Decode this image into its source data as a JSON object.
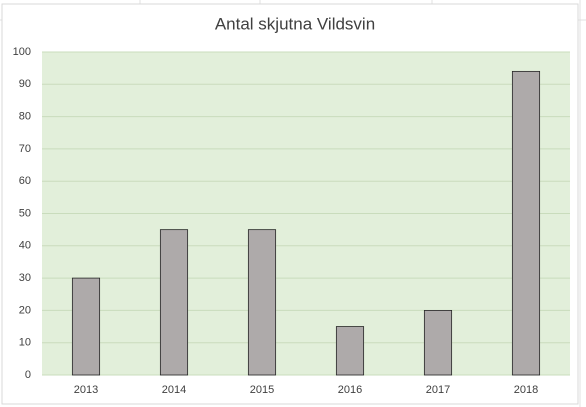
{
  "chart_data": {
    "type": "bar",
    "title": "Antal skjutna Vildsvin",
    "categories": [
      "2013",
      "2014",
      "2015",
      "2016",
      "2017",
      "2018"
    ],
    "values": [
      30,
      45,
      45,
      15,
      20,
      94
    ],
    "color": "#aeaaaa",
    "background": "#e2efda",
    "ylim": [
      0,
      100
    ],
    "yticks": [
      0,
      10,
      20,
      30,
      40,
      50,
      60,
      70,
      80,
      90,
      100
    ],
    "grid": true
  }
}
